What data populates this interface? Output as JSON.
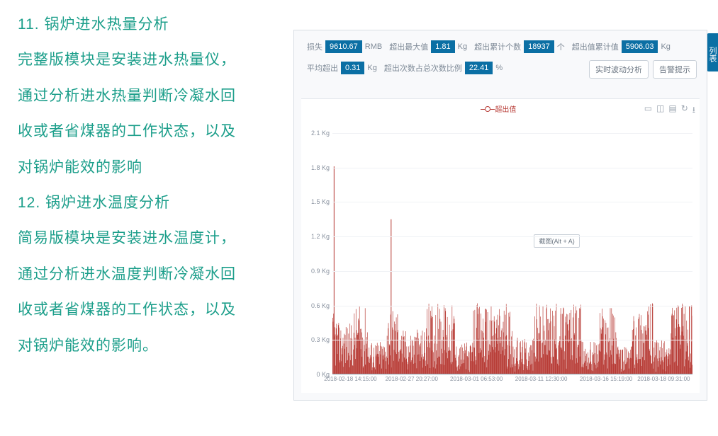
{
  "left_text": {
    "h11": "11. 锅炉进水热量分析",
    "p11a": "完整版模块是安装进水热量仪，",
    "p11b": "通过分析进水热量判断冷凝水回",
    "p11c": "收或者省煤器的工作状态，以及",
    "p11d": "对锅炉能效的影响",
    "h12": "12. 锅炉进水温度分析",
    "p12a": "简易版模块是安装进水温度计，",
    "p12b": "通过分析进水温度判断冷凝水回",
    "p12c": "收或者省煤器的工作状态，以及",
    "p12d": "对锅炉能效的影响。"
  },
  "side_tab": "列表",
  "metrics": {
    "loss_label": "损失",
    "loss_value": "9610.67",
    "loss_unit": "RMB",
    "max_label": "超出最大值",
    "max_value": "1.81",
    "max_unit": "Kg",
    "count_label": "超出累计个数",
    "count_value": "18937",
    "count_unit": "个",
    "sum_label": "超出值累计值",
    "sum_value": "5906.03",
    "sum_unit": "Kg",
    "avg_label": "平均超出",
    "avg_value": "0.31",
    "avg_unit": "Kg",
    "ratio_label": "超出次数占总次数比例",
    "ratio_value": "22.41",
    "ratio_unit": "%"
  },
  "buttons": {
    "realtime": "实时波动分析",
    "alert": "告警提示"
  },
  "legend_label": "超出值",
  "tooltip": "截图(Alt + A)",
  "chart": {
    "type": "area-bar",
    "color": "#b73a34",
    "background": "#ffffff",
    "grid_color": "#f0f2f5",
    "ylim": [
      0,
      2.1
    ],
    "ytick_step": 0.3,
    "yunit": "Kg",
    "yticks": [
      "0 Kg",
      "0.3 Kg",
      "0.6 Kg",
      "0.9 Kg",
      "1.2 Kg",
      "1.5 Kg",
      "1.8 Kg",
      "2.1 Kg"
    ],
    "xlabels": [
      "2018-02-18 14:15:00",
      "2018-02-27 20:27:00",
      "2018-03-01 06:53:00",
      "2018-03-11 12:30:00",
      "2018-03-16 15:19:00",
      "2018-03-18 09:31:00"
    ],
    "xpositions_pct": [
      5,
      22,
      40,
      58,
      76,
      92
    ],
    "segments": [
      {
        "start": 0.0,
        "end": 0.012,
        "low": 0.05,
        "high": 0.55,
        "spike": 1.81
      },
      {
        "start": 0.012,
        "end": 0.06,
        "low": 0.05,
        "high": 0.45
      },
      {
        "start": 0.06,
        "end": 0.1,
        "low": 0.05,
        "high": 0.6
      },
      {
        "start": 0.1,
        "end": 0.15,
        "low": 0.02,
        "high": 0.3
      },
      {
        "start": 0.15,
        "end": 0.19,
        "low": 0.05,
        "high": 0.6,
        "spike": 1.35
      },
      {
        "start": 0.19,
        "end": 0.26,
        "low": 0.03,
        "high": 0.4
      },
      {
        "start": 0.26,
        "end": 0.34,
        "low": 0.05,
        "high": 0.62
      },
      {
        "start": 0.34,
        "end": 0.39,
        "low": 0.02,
        "high": 0.28
      },
      {
        "start": 0.39,
        "end": 0.5,
        "low": 0.05,
        "high": 0.62
      },
      {
        "start": 0.5,
        "end": 0.56,
        "low": 0.02,
        "high": 0.32
      },
      {
        "start": 0.56,
        "end": 0.69,
        "low": 0.05,
        "high": 0.62
      },
      {
        "start": 0.69,
        "end": 0.74,
        "low": 0.02,
        "high": 0.3
      },
      {
        "start": 0.74,
        "end": 0.79,
        "low": 0.05,
        "high": 0.62
      },
      {
        "start": 0.79,
        "end": 0.83,
        "low": 0.02,
        "high": 0.25
      },
      {
        "start": 0.83,
        "end": 0.895,
        "low": 0.05,
        "high": 0.62
      },
      {
        "start": 0.895,
        "end": 0.94,
        "low": 0.02,
        "high": 0.3
      },
      {
        "start": 0.94,
        "end": 0.995,
        "low": 0.05,
        "high": 0.62
      },
      {
        "start": 0.995,
        "end": 1.0,
        "low": 0.05,
        "high": 0.6,
        "spike": 0.6
      }
    ]
  }
}
